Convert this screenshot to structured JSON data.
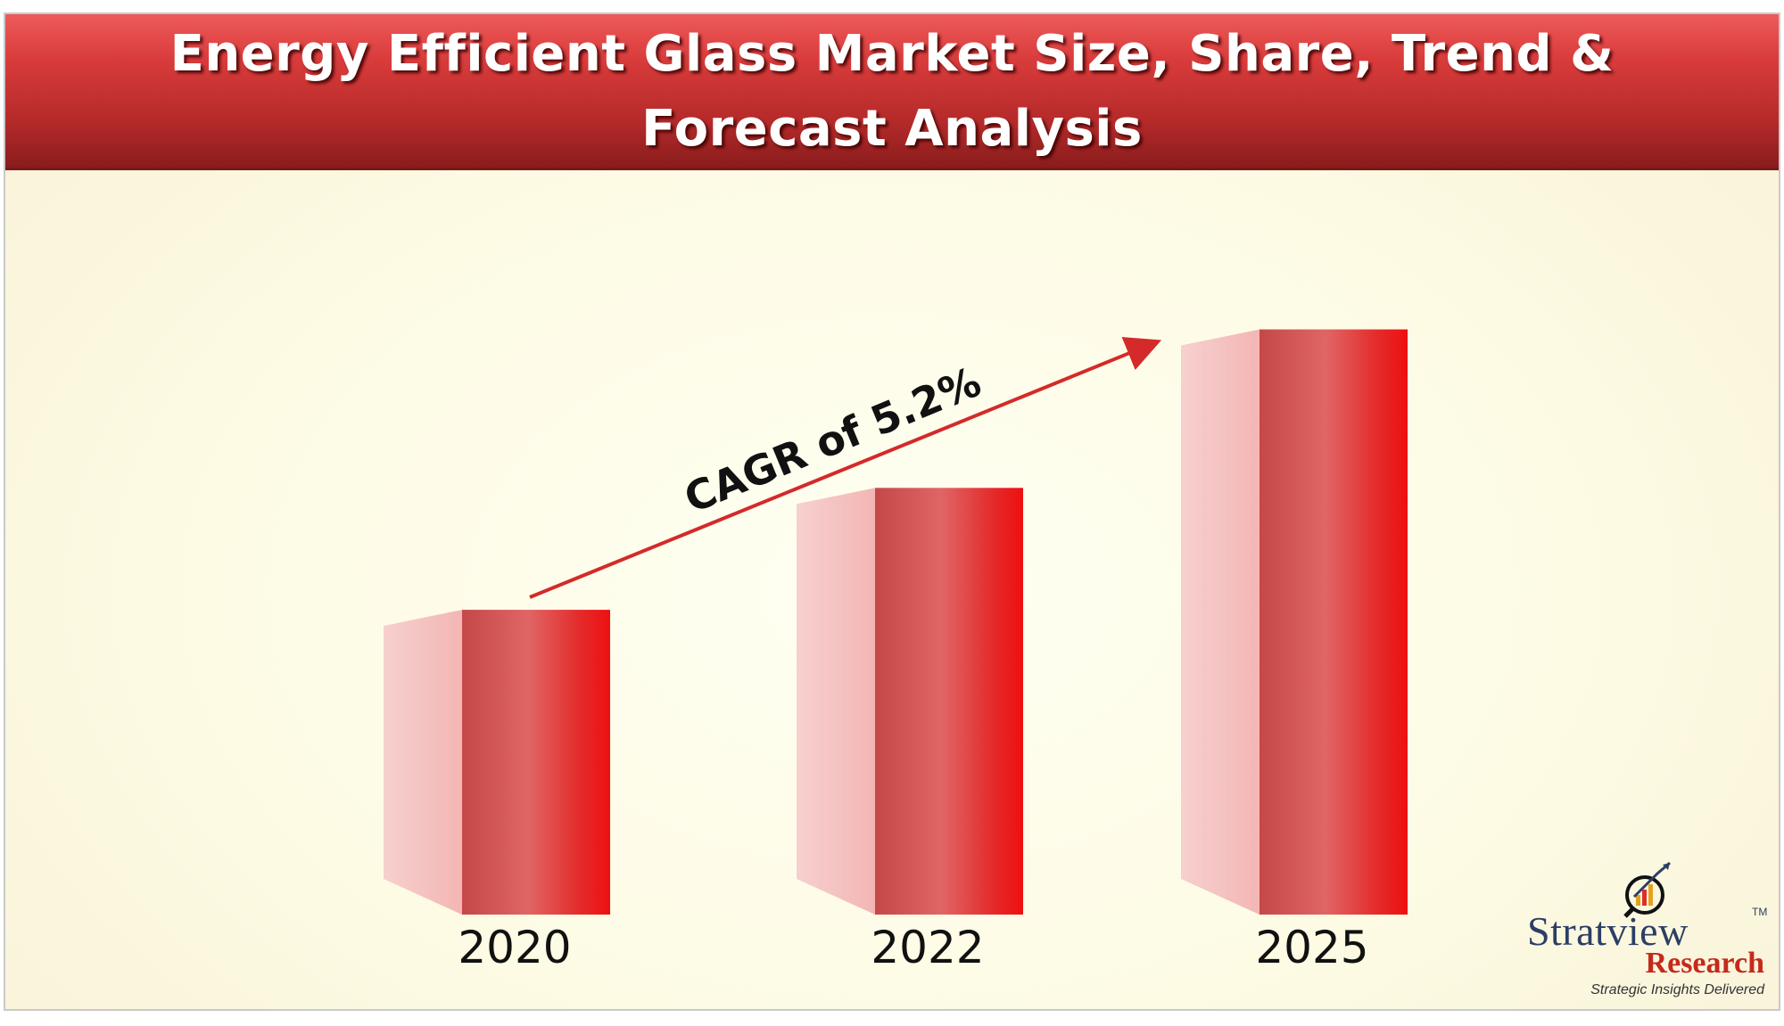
{
  "title": "Energy Efficient Glass Market Size, Share, Trend & Forecast Analysis",
  "annotation": "CAGR of 5.2%",
  "colors": {
    "banner": "#c13030",
    "bar_front_dark": "#c84a4a",
    "bar_front_light": "#e06464",
    "bar_front_edge": "#e81818",
    "bar_side": "#f6c7c7",
    "arrow": "#d42a2a"
  },
  "chart_data": {
    "type": "bar",
    "categories": [
      "2020",
      "2022",
      "2025"
    ],
    "values": [
      1.0,
      1.4,
      1.92
    ],
    "title": "Energy Efficient Glass Market Size, Share, Trend & Forecast Analysis",
    "xlabel": "",
    "ylabel": "",
    "ylim": [
      0,
      2.1
    ],
    "grid": false,
    "legend": "none",
    "annotations": [
      "CAGR of 5.2%"
    ]
  },
  "logo": {
    "name": "Stratview",
    "trademark": "TM",
    "sub": "Research",
    "tagline": "Strategic Insights Delivered",
    "icon": "magnifier-chart-icon"
  }
}
